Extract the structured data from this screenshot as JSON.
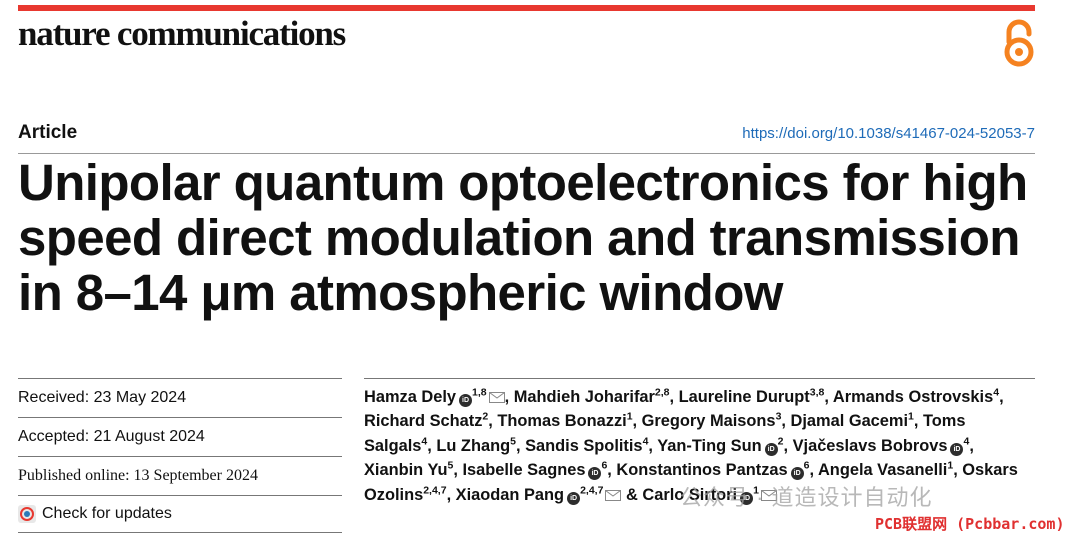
{
  "header": {
    "journal_name": "nature communications",
    "open_access_icon": "open-access-lock-icon",
    "brand_color": "#e8382f",
    "accent_orange": "#f58220"
  },
  "article": {
    "type": "Article",
    "doi_url": "https://doi.org/10.1038/s41467-024-52053-7",
    "title": "Unipolar quantum optoelectronics for high speed direct modulation and transmission in 8–14 μm atmospheric window"
  },
  "meta": {
    "received": "Received: 23 May 2024",
    "accepted": "Accepted: 21 August 2024",
    "published": "Published online: 13 September 2024",
    "check_updates": "Check for updates"
  },
  "authors": [
    {
      "name": "Hamza Dely",
      "orcid": true,
      "sup": "1,8",
      "mail": true
    },
    {
      "name": "Mahdieh Joharifar",
      "sup": "2,8"
    },
    {
      "name": "Laureline Durupt",
      "sup": "3,8"
    },
    {
      "name": "Armands Ostrovskis",
      "sup": "4"
    },
    {
      "name": "Richard Schatz",
      "sup": "2"
    },
    {
      "name": "Thomas Bonazzi",
      "sup": "1"
    },
    {
      "name": "Gregory Maisons",
      "sup": "3"
    },
    {
      "name": "Djamal Gacemi",
      "sup": "1"
    },
    {
      "name": "Toms Salgals",
      "sup": "4"
    },
    {
      "name": "Lu Zhang",
      "sup": "5"
    },
    {
      "name": "Sandis Spolitis",
      "sup": "4"
    },
    {
      "name": "Yan-Ting Sun",
      "orcid": true,
      "sup": "2"
    },
    {
      "name": "Vjačeslavs Bobrovs",
      "orcid": true,
      "sup": "4"
    },
    {
      "name": "Xianbin Yu",
      "sup": "5"
    },
    {
      "name": "Isabelle Sagnes",
      "orcid": true,
      "sup": "6"
    },
    {
      "name": "Konstantinos Pantzas",
      "orcid": true,
      "sup": "6"
    },
    {
      "name": "Angela Vasanelli",
      "sup": "1"
    },
    {
      "name": "Oskars Ozolins",
      "sup": "2,4,7"
    },
    {
      "name": "Xiaodan Pang",
      "orcid": true,
      "sup": "2,4,7",
      "mail": true
    },
    {
      "name": "Carlo Sirtori",
      "orcid": true,
      "sup": "1",
      "mail": true
    }
  ],
  "watermark": {
    "text": "公众号 · 道造设计自动化",
    "badge": "PCB联盟网 (Pcbbar.com)"
  }
}
